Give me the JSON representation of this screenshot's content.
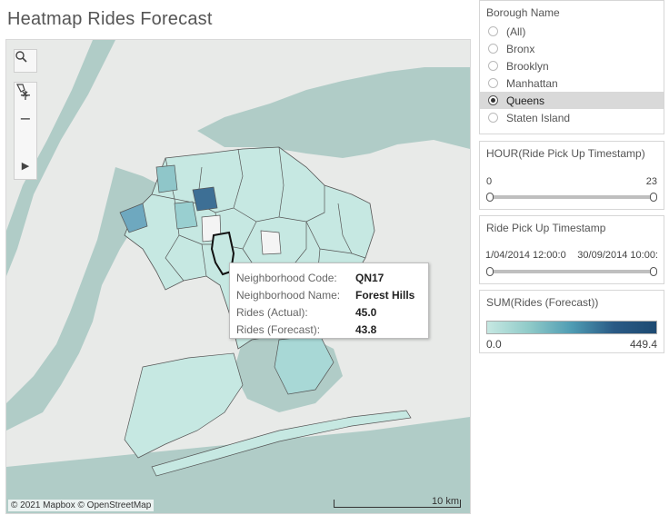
{
  "title": "Heatmap Rides Forecast",
  "map": {
    "attribution": "© 2021 Mapbox © OpenStreetMap",
    "scale_label": "10 km",
    "controls": {
      "search_icon": "search-icon",
      "zoom_in": "+",
      "zoom_out": "−",
      "reset_icon": "pin-clear-icon",
      "play_icon": "▶"
    }
  },
  "tooltip": {
    "rows": [
      {
        "key": "Neighborhood Code:",
        "value": "QN17"
      },
      {
        "key": "Neighborhood Name:",
        "value": "Forest Hills"
      },
      {
        "key": "Rides (Actual):",
        "value": "45.0"
      },
      {
        "key": "Rides (Forecast):",
        "value": "43.8"
      }
    ]
  },
  "filters": {
    "borough": {
      "title": "Borough Name",
      "options": [
        "(All)",
        "Bronx",
        "Brooklyn",
        "Manhattan",
        "Queens",
        "Staten Island"
      ],
      "selected": "Queens"
    },
    "hour": {
      "title": "HOUR(Ride Pick Up Timestamp)",
      "min": "0",
      "max": "23",
      "low_fraction": 0,
      "high_fraction": 1
    },
    "timestamp": {
      "title": "Ride Pick Up Timestamp",
      "min": "1/04/2014 12:00:0",
      "max": "30/09/2014 10:00:",
      "low_fraction": 0,
      "high_fraction": 1
    }
  },
  "legend": {
    "title": "SUM(Rides (Forecast))",
    "min": "0.0",
    "max": "449.4"
  },
  "colors": {
    "water": "#a9c7c2",
    "land": "#e8eae8",
    "low": "#c6e8e2",
    "high": "#2a5a85",
    "border": "#555555",
    "selected_border": "#111111"
  }
}
